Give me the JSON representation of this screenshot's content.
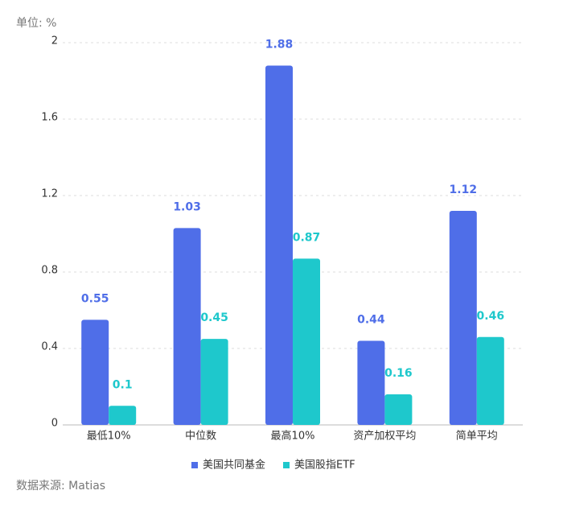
{
  "chart_data": {
    "type": "bar",
    "y_label": "单位: %",
    "source": "数据来源: Matias",
    "categories": [
      "最低10%",
      "中位数",
      "最高10%",
      "资产加权平均",
      "简单平均"
    ],
    "series": [
      {
        "name": "美国共同基金",
        "color": "#4f6ee8",
        "values": [
          0.55,
          1.03,
          1.88,
          0.44,
          1.12
        ]
      },
      {
        "name": "美国股指ETF",
        "color": "#1ec8cc",
        "values": [
          0.1,
          0.45,
          0.87,
          0.16,
          0.46
        ]
      }
    ],
    "ylim": [
      0,
      2
    ],
    "yticks": [
      0,
      0.4,
      0.8,
      1.2,
      1.6,
      2
    ],
    "grid": true,
    "legend": "bottom"
  }
}
